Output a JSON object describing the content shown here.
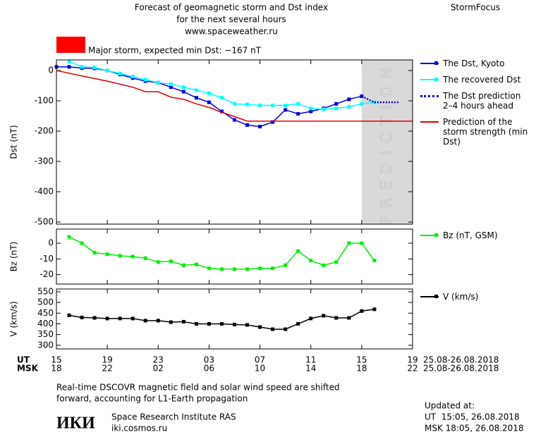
{
  "header": {
    "title_lines": [
      "Forecast of geomagnetic storm and Dst index",
      "for the next several hours",
      "www.spaceweather.ru"
    ],
    "brand": "StormFocus"
  },
  "chart_data": [
    {
      "type": "line",
      "ylabel": "Dst (nT)",
      "ylim": [
        -507,
        35
      ],
      "yticks": [
        0,
        -100,
        -200,
        -300,
        -400,
        -500
      ],
      "annotation": {
        "text": "Major storm, expected min Dst: −167 nT",
        "color": "#ff0000"
      },
      "prediction": {
        "label": "PREDICTION",
        "xlim": [
          24,
          28
        ],
        "color": "#d9d9d9"
      },
      "series": [
        {
          "name": "The Dst, Kyoto",
          "color": "#0000dd",
          "markers": true,
          "dotted": false,
          "x": [
            0,
            1,
            2,
            3,
            4,
            5,
            6,
            7,
            8,
            9,
            10,
            11,
            12,
            13,
            14,
            15,
            16,
            17,
            18,
            19,
            20,
            21,
            22,
            23,
            24
          ],
          "values": [
            12,
            12,
            8,
            7,
            0,
            -13,
            -25,
            -35,
            -40,
            -55,
            -70,
            -90,
            -105,
            -135,
            -163,
            -180,
            -185,
            -170,
            -130,
            -143,
            -135,
            -125,
            -110,
            -95,
            -85
          ]
        },
        {
          "name": "The recovered Dst",
          "color": "#00ffff",
          "markers": true,
          "dotted": false,
          "x": [
            1,
            2,
            3,
            4,
            5,
            6,
            7,
            8,
            9,
            10,
            11,
            12,
            13,
            14,
            15,
            16,
            17,
            18,
            19,
            20,
            21,
            22,
            23,
            24,
            25
          ],
          "values": [
            30,
            12,
            10,
            0,
            -10,
            -20,
            -30,
            -40,
            -45,
            -55,
            -65,
            -75,
            -90,
            -110,
            -112,
            -115,
            -115,
            -115,
            -110,
            -125,
            -128,
            -125,
            -120,
            -110,
            -105
          ]
        },
        {
          "name": "The Dst prediction 2–4 hours ahead",
          "color": "#0000dd",
          "markers": false,
          "dotted": true,
          "x": [
            24,
            25,
            27
          ],
          "values": [
            -85,
            -105,
            -105
          ]
        },
        {
          "name": "Prediction of the storm strength (min Dst)",
          "color": "#dd0000",
          "markers": false,
          "dotted": false,
          "x": [
            0,
            2,
            4,
            6,
            7,
            8,
            9,
            10,
            11,
            12,
            13,
            14,
            15,
            28
          ],
          "values": [
            0,
            -18,
            -35,
            -55,
            -70,
            -70,
            -88,
            -95,
            -110,
            -122,
            -138,
            -152,
            -167,
            -167
          ]
        }
      ]
    },
    {
      "type": "line",
      "ylabel": "Bz (nT)",
      "ylim": [
        -26,
        9
      ],
      "yticks": [
        0,
        -10,
        -20
      ],
      "series": [
        {
          "name": "Bz (nT, GSM)",
          "color": "#00ee00",
          "markers": true,
          "dotted": false,
          "x": [
            1,
            2,
            3,
            4,
            5,
            6,
            7,
            8,
            9,
            10,
            11,
            12,
            13,
            14,
            15,
            16,
            17,
            18,
            19,
            20,
            21,
            22,
            23,
            24,
            25
          ],
          "values": [
            4,
            0,
            -6,
            -7,
            -8,
            -8.5,
            -9.5,
            -12,
            -11.5,
            -14,
            -13.5,
            -16,
            -16.5,
            -16.5,
            -16.5,
            -16,
            -16,
            -14,
            -5,
            -11,
            -14,
            -12,
            0,
            0,
            -11
          ]
        }
      ]
    },
    {
      "type": "line",
      "ylabel": "V (km/s)",
      "ylim": [
        283,
        563
      ],
      "yticks": [
        550,
        500,
        450,
        400,
        350,
        300
      ],
      "xlim": [
        0,
        28
      ],
      "xlabel": "UT",
      "x2label": "MSK",
      "date_range": "25.08-26.08.2018",
      "xticks": [
        {
          "value": 0,
          "label": "15"
        },
        {
          "value": 4,
          "label": "19"
        },
        {
          "value": 8,
          "label": "23"
        },
        {
          "value": 12,
          "label": "03"
        },
        {
          "value": 16,
          "label": "07"
        },
        {
          "value": 20,
          "label": "11"
        },
        {
          "value": 24,
          "label": "15"
        },
        {
          "value": 28,
          "label": "19"
        }
      ],
      "x2ticks": [
        {
          "value": 0,
          "label": "18"
        },
        {
          "value": 4,
          "label": "22"
        },
        {
          "value": 8,
          "label": "02"
        },
        {
          "value": 12,
          "label": "06"
        },
        {
          "value": 16,
          "label": "10"
        },
        {
          "value": 20,
          "label": "14"
        },
        {
          "value": 24,
          "label": "18"
        },
        {
          "value": 28,
          "label": "22"
        }
      ],
      "series": [
        {
          "name": "V (km/s)",
          "color": "#000000",
          "markers": true,
          "dotted": false,
          "x": [
            1,
            2,
            3,
            4,
            5,
            6,
            7,
            8,
            9,
            10,
            11,
            12,
            13,
            14,
            15,
            16,
            17,
            18,
            19,
            20,
            21,
            22,
            23,
            24,
            25
          ],
          "values": [
            440,
            430,
            428,
            425,
            425,
            425,
            415,
            415,
            408,
            410,
            400,
            400,
            400,
            397,
            395,
            385,
            375,
            375,
            400,
            425,
            438,
            428,
            428,
            460,
            468
          ]
        }
      ]
    }
  ],
  "footer": {
    "note_lines": [
      "Real-time DSCOVR magnetic field and solar wind speed are shifted",
      "forward, accounting for L1-Earth propagation"
    ],
    "logo": "ИКИ",
    "institute": "Space Research Institute RAS",
    "site": "iki.cosmos.ru",
    "updated": {
      "label": "Updated at:",
      "ut": "UT  15:05, 26.08.2018",
      "msk": "MSK 18:05, 26.08.2018"
    }
  }
}
